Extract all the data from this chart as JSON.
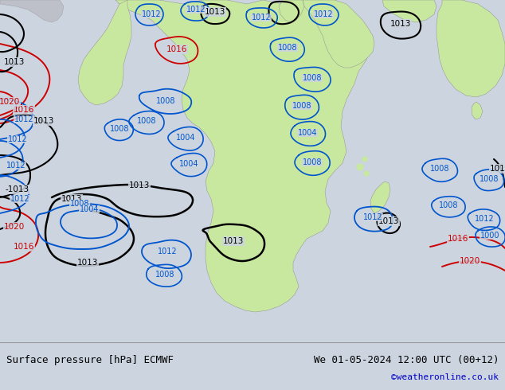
{
  "title_left": "Surface pressure [hPa] ECMWF",
  "title_right": "We 01-05-2024 12:00 UTC (00+12)",
  "credit": "©weatheronline.co.uk",
  "bg_color": "#ccd4e0",
  "land_color": "#c8e8a0",
  "gray_land_color": "#b8b8c0",
  "bottom_bar_color": "#e0e0e0",
  "isobar_black_color": "#000000",
  "isobar_blue_color": "#0055cc",
  "isobar_red_color": "#cc0000",
  "footer_fontsize": 9,
  "credit_fontsize": 8,
  "credit_color": "#0000cc",
  "figwidth": 6.34,
  "figheight": 4.9,
  "dpi": 100
}
